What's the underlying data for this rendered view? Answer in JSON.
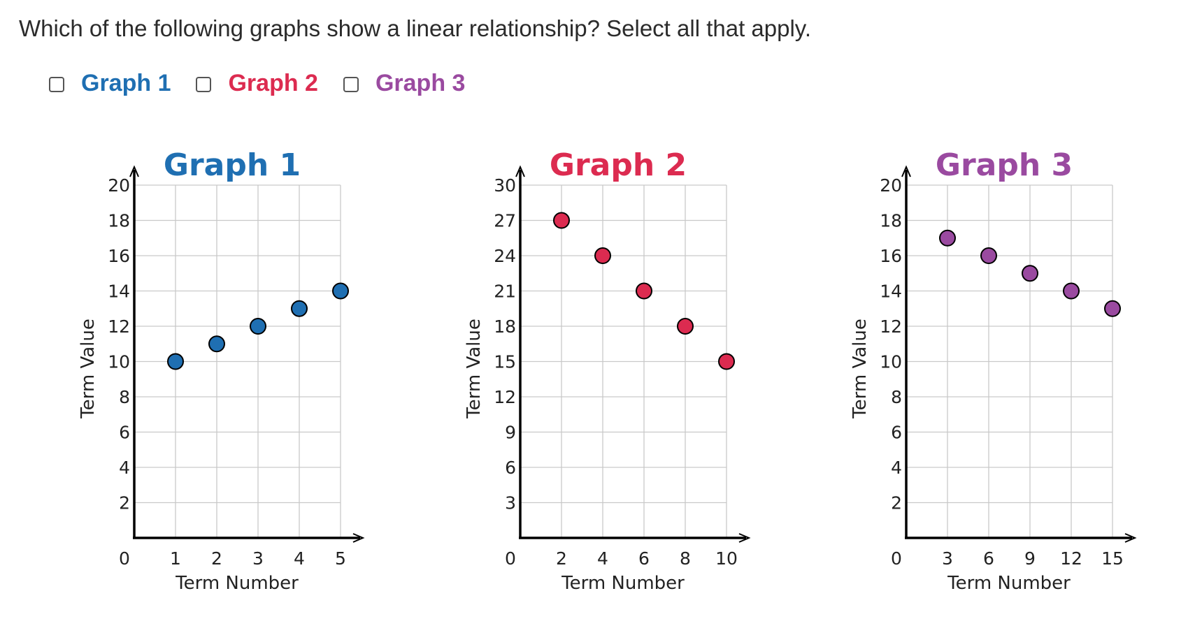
{
  "question": "Which of the following graphs show a linear relationship? Select all that apply.",
  "options": [
    {
      "label": "Graph 1",
      "color": "#1f6fb2",
      "checked": false
    },
    {
      "label": "Graph 2",
      "color": "#dc2b50",
      "checked": false
    },
    {
      "label": "Graph 3",
      "color": "#9a4aa0",
      "checked": false
    }
  ],
  "chart_data": [
    {
      "type": "scatter",
      "title": "Graph 1",
      "title_color": "#1f6fb2",
      "point_color": "#1f6fb2",
      "xlabel": "Term Number",
      "ylabel": "Term Value",
      "xlim": [
        0,
        5
      ],
      "ylim": [
        0,
        20
      ],
      "x_ticks": [
        "1",
        "2",
        "3",
        "4",
        "5"
      ],
      "y_ticks": [
        "2",
        "4",
        "6",
        "8",
        "10",
        "12",
        "14",
        "16",
        "18",
        "20"
      ],
      "origin_label": "0",
      "grid": true,
      "x": [
        1,
        2,
        3,
        4,
        5
      ],
      "y": [
        10,
        11,
        12,
        13,
        14
      ]
    },
    {
      "type": "scatter",
      "title": "Graph 2",
      "title_color": "#dc2b50",
      "point_color": "#dc2b50",
      "xlabel": "Term Number",
      "ylabel": "Term Value",
      "xlim": [
        0,
        10
      ],
      "ylim": [
        0,
        30
      ],
      "x_ticks": [
        "2",
        "4",
        "6",
        "8",
        "10"
      ],
      "y_ticks": [
        "3",
        "6",
        "9",
        "12",
        "15",
        "18",
        "21",
        "24",
        "27",
        "30"
      ],
      "origin_label": "0",
      "grid": true,
      "x": [
        2,
        4,
        6,
        8,
        10
      ],
      "y": [
        27,
        24,
        21,
        18,
        15
      ]
    },
    {
      "type": "scatter",
      "title": "Graph 3",
      "title_color": "#9a4aa0",
      "point_color": "#9a4aa0",
      "xlabel": "Term Number",
      "ylabel": "Term Value",
      "xlim": [
        0,
        15
      ],
      "ylim": [
        0,
        20
      ],
      "x_ticks": [
        "3",
        "6",
        "9",
        "12",
        "15"
      ],
      "y_ticks": [
        "2",
        "4",
        "6",
        "8",
        "10",
        "12",
        "14",
        "16",
        "18",
        "20"
      ],
      "origin_label": "0",
      "grid": true,
      "x": [
        3,
        6,
        9,
        12,
        15
      ],
      "y": [
        17,
        16,
        15,
        14,
        13
      ]
    }
  ]
}
